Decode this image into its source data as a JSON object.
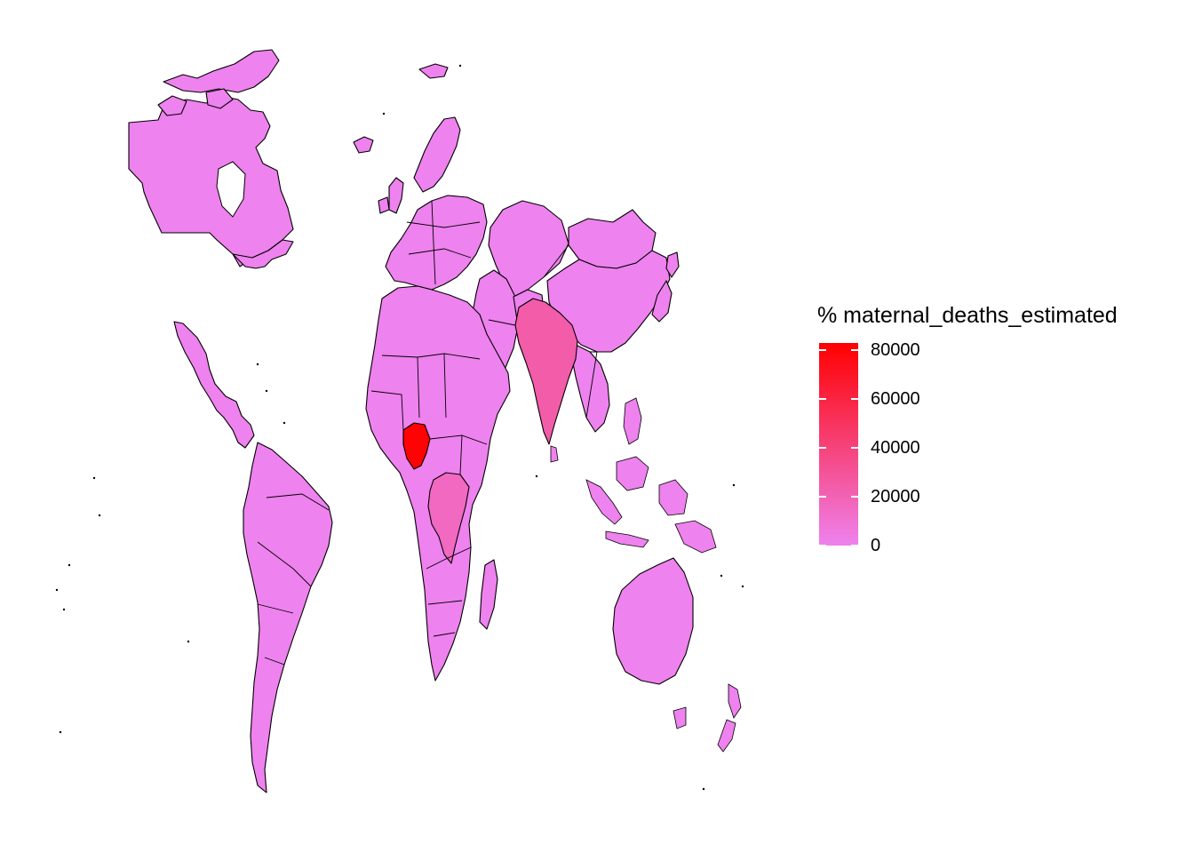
{
  "legend": {
    "title": "% maternal_deaths_estimated",
    "min": 0,
    "max": 83000,
    "ticks": [
      {
        "value": 0,
        "label": "0"
      },
      {
        "value": 20000,
        "label": "20000"
      },
      {
        "value": 40000,
        "label": "40000"
      },
      {
        "value": 60000,
        "label": "60000"
      },
      {
        "value": 80000,
        "label": "80000"
      }
    ],
    "low_color": "#EE82EE",
    "high_color": "#FF0000"
  },
  "colors": {
    "background": "#ffffff",
    "border": "#000000",
    "base_fill": "#EE82EE"
  },
  "highlighted_regions": [
    {
      "name": "Nigeria",
      "value": 82000
    },
    {
      "name": "India",
      "value": 24000
    },
    {
      "name": "Democratic Republic of the Congo",
      "value": 16000
    }
  ]
}
